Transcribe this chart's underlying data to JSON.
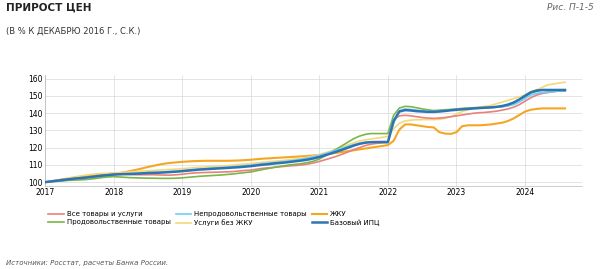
{
  "title": "ПРИРОСТ ЦЕН",
  "subtitle": "(В % К ДЕКАБРЮ 2016 Г., С.К.)",
  "ref": "Рис. П-1-5",
  "source": "Источники: Росстат, расчеты Банка России.",
  "ylim": [
    98,
    162
  ],
  "yticks": [
    100,
    110,
    120,
    130,
    140,
    150,
    160
  ],
  "xlim_start": 2017.0,
  "xlim_end": 2024.83,
  "xtick_labels": [
    "2017",
    "2018",
    "2019",
    "2020",
    "2021",
    "2022",
    "2023",
    "2024"
  ],
  "xtick_positions": [
    2017,
    2018,
    2019,
    2020,
    2021,
    2022,
    2023,
    2024
  ],
  "legend": [
    {
      "label": "Все товары и услуги",
      "color": "#e8827a",
      "lw": 1.2
    },
    {
      "label": "Продовольственные товары",
      "color": "#7ab648",
      "lw": 1.2
    },
    {
      "label": "Непродовольственные товары",
      "color": "#6ecff6",
      "lw": 1.2
    },
    {
      "label": "Услуги без ЖКУ",
      "color": "#f5d87a",
      "lw": 1.2
    },
    {
      "label": "ЖКУ",
      "color": "#f5a623",
      "lw": 1.5
    },
    {
      "label": "Базовый ИПЦ",
      "color": "#2e74b5",
      "lw": 1.8
    }
  ],
  "series": {
    "jku": {
      "color": "#f5a623",
      "lw": 1.5,
      "x": [
        2017.0,
        2017.083,
        2017.167,
        2017.25,
        2017.333,
        2017.417,
        2017.5,
        2017.583,
        2017.667,
        2017.75,
        2017.833,
        2017.917,
        2018.0,
        2018.083,
        2018.167,
        2018.25,
        2018.333,
        2018.417,
        2018.5,
        2018.583,
        2018.667,
        2018.75,
        2018.833,
        2018.917,
        2019.0,
        2019.083,
        2019.167,
        2019.25,
        2019.333,
        2019.417,
        2019.5,
        2019.583,
        2019.667,
        2019.75,
        2019.833,
        2019.917,
        2020.0,
        2020.083,
        2020.167,
        2020.25,
        2020.333,
        2020.417,
        2020.5,
        2020.583,
        2020.667,
        2020.75,
        2020.833,
        2020.917,
        2021.0,
        2021.083,
        2021.167,
        2021.25,
        2021.333,
        2021.417,
        2021.5,
        2021.583,
        2021.667,
        2021.75,
        2021.833,
        2021.917,
        2022.0,
        2022.083,
        2022.167,
        2022.25,
        2022.333,
        2022.417,
        2022.5,
        2022.583,
        2022.667,
        2022.75,
        2022.833,
        2022.917,
        2023.0,
        2023.083,
        2023.167,
        2023.25,
        2023.333,
        2023.417,
        2023.5,
        2023.583,
        2023.667,
        2023.75,
        2023.833,
        2023.917,
        2024.0,
        2024.083,
        2024.167,
        2024.25,
        2024.333,
        2024.417,
        2024.5,
        2024.583
      ],
      "y": [
        100.0,
        100.5,
        101.0,
        101.5,
        102.0,
        102.5,
        103.0,
        103.5,
        104.0,
        104.3,
        104.5,
        104.7,
        104.8,
        105.2,
        105.8,
        106.5,
        107.2,
        108.0,
        108.8,
        109.5,
        110.2,
        110.8,
        111.2,
        111.5,
        111.8,
        112.0,
        112.2,
        112.3,
        112.4,
        112.4,
        112.4,
        112.4,
        112.4,
        112.5,
        112.6,
        112.8,
        113.0,
        113.3,
        113.6,
        113.8,
        114.0,
        114.2,
        114.4,
        114.6,
        114.8,
        115.0,
        115.2,
        115.5,
        115.8,
        116.2,
        116.6,
        117.0,
        117.5,
        118.0,
        118.5,
        119.0,
        119.5,
        120.0,
        120.5,
        121.0,
        121.5,
        124.0,
        130.5,
        133.5,
        133.5,
        133.0,
        132.5,
        132.0,
        131.8,
        129.0,
        128.2,
        128.0,
        129.0,
        132.5,
        133.0,
        133.0,
        133.0,
        133.2,
        133.5,
        134.0,
        134.5,
        135.5,
        137.0,
        139.0,
        141.0,
        142.0,
        142.5,
        142.8,
        142.8,
        142.8,
        142.8,
        142.8
      ]
    },
    "services_no_jku": {
      "color": "#f5d87a",
      "lw": 1.2,
      "x": [
        2017.0,
        2017.083,
        2017.167,
        2017.25,
        2017.333,
        2017.417,
        2017.5,
        2017.583,
        2017.667,
        2017.75,
        2017.833,
        2017.917,
        2018.0,
        2018.083,
        2018.167,
        2018.25,
        2018.333,
        2018.417,
        2018.5,
        2018.583,
        2018.667,
        2018.75,
        2018.833,
        2018.917,
        2019.0,
        2019.083,
        2019.167,
        2019.25,
        2019.333,
        2019.417,
        2019.5,
        2019.583,
        2019.667,
        2019.75,
        2019.833,
        2019.917,
        2020.0,
        2020.083,
        2020.167,
        2020.25,
        2020.333,
        2020.417,
        2020.5,
        2020.583,
        2020.667,
        2020.75,
        2020.833,
        2020.917,
        2021.0,
        2021.083,
        2021.167,
        2021.25,
        2021.333,
        2021.417,
        2021.5,
        2021.583,
        2021.667,
        2021.75,
        2021.833,
        2021.917,
        2022.0,
        2022.083,
        2022.167,
        2022.25,
        2022.333,
        2022.417,
        2022.5,
        2022.583,
        2022.667,
        2022.75,
        2022.833,
        2022.917,
        2023.0,
        2023.083,
        2023.167,
        2023.25,
        2023.333,
        2023.417,
        2023.5,
        2023.583,
        2023.667,
        2023.75,
        2023.833,
        2023.917,
        2024.0,
        2024.083,
        2024.167,
        2024.25,
        2024.333,
        2024.417,
        2024.5,
        2024.583
      ],
      "y": [
        100.0,
        100.6,
        101.2,
        101.8,
        102.4,
        103.0,
        103.5,
        104.0,
        104.4,
        104.8,
        105.0,
        105.2,
        105.4,
        105.6,
        105.8,
        106.0,
        106.2,
        106.4,
        106.6,
        106.8,
        107.0,
        107.2,
        107.4,
        107.6,
        107.8,
        108.1,
        108.4,
        108.6,
        108.8,
        109.0,
        109.2,
        109.4,
        109.6,
        109.9,
        110.2,
        110.5,
        110.8,
        111.2,
        111.5,
        111.8,
        112.1,
        112.4,
        112.7,
        113.1,
        113.5,
        114.0,
        114.5,
        115.2,
        116.0,
        117.0,
        118.0,
        119.2,
        120.4,
        121.6,
        122.8,
        123.8,
        124.5,
        125.0,
        125.5,
        126.0,
        126.5,
        131.0,
        134.2,
        135.5,
        136.0,
        136.2,
        136.3,
        136.3,
        136.3,
        136.5,
        137.0,
        138.0,
        139.5,
        141.0,
        142.0,
        143.0,
        143.5,
        144.0,
        144.5,
        145.5,
        146.5,
        147.5,
        148.5,
        149.5,
        150.5,
        152.0,
        153.5,
        155.0,
        156.5,
        157.0,
        157.5,
        158.0
      ]
    },
    "all_goods": {
      "color": "#e8827a",
      "lw": 1.2,
      "x": [
        2017.0,
        2017.083,
        2017.167,
        2017.25,
        2017.333,
        2017.417,
        2017.5,
        2017.583,
        2017.667,
        2017.75,
        2017.833,
        2017.917,
        2018.0,
        2018.083,
        2018.167,
        2018.25,
        2018.333,
        2018.417,
        2018.5,
        2018.583,
        2018.667,
        2018.75,
        2018.833,
        2018.917,
        2019.0,
        2019.083,
        2019.167,
        2019.25,
        2019.333,
        2019.417,
        2019.5,
        2019.583,
        2019.667,
        2019.75,
        2019.833,
        2019.917,
        2020.0,
        2020.083,
        2020.167,
        2020.25,
        2020.333,
        2020.417,
        2020.5,
        2020.583,
        2020.667,
        2020.75,
        2020.833,
        2020.917,
        2021.0,
        2021.083,
        2021.167,
        2021.25,
        2021.333,
        2021.417,
        2021.5,
        2021.583,
        2021.667,
        2021.75,
        2021.833,
        2021.917,
        2022.0,
        2022.083,
        2022.167,
        2022.25,
        2022.333,
        2022.417,
        2022.5,
        2022.583,
        2022.667,
        2022.75,
        2022.833,
        2022.917,
        2023.0,
        2023.083,
        2023.167,
        2023.25,
        2023.333,
        2023.417,
        2023.5,
        2023.583,
        2023.667,
        2023.75,
        2023.833,
        2023.917,
        2024.0,
        2024.083,
        2024.167,
        2024.25,
        2024.333,
        2024.417,
        2024.5,
        2024.583
      ],
      "y": [
        100.0,
        100.5,
        101.0,
        101.5,
        101.8,
        102.1,
        102.3,
        102.6,
        102.9,
        103.2,
        103.7,
        104.2,
        104.5,
        104.5,
        104.5,
        104.4,
        104.3,
        104.3,
        104.3,
        104.3,
        104.2,
        104.1,
        104.1,
        104.3,
        104.6,
        105.0,
        105.3,
        105.5,
        105.6,
        105.7,
        105.8,
        105.9,
        106.0,
        106.2,
        106.5,
        106.8,
        107.0,
        107.5,
        108.0,
        108.3,
        108.6,
        108.9,
        109.2,
        109.5,
        109.7,
        110.0,
        110.5,
        111.2,
        112.0,
        113.0,
        114.0,
        115.0,
        116.2,
        117.5,
        118.8,
        120.0,
        121.2,
        122.0,
        122.5,
        122.8,
        123.0,
        136.0,
        138.5,
        138.8,
        138.5,
        138.0,
        137.5,
        137.2,
        137.0,
        137.2,
        137.5,
        138.0,
        138.5,
        139.0,
        139.5,
        140.0,
        140.3,
        140.5,
        140.8,
        141.2,
        141.8,
        142.5,
        143.5,
        145.0,
        147.0,
        149.0,
        150.5,
        151.5,
        152.0,
        152.5,
        153.0,
        153.2
      ]
    },
    "food": {
      "color": "#7ab648",
      "lw": 1.2,
      "x": [
        2017.0,
        2017.083,
        2017.167,
        2017.25,
        2017.333,
        2017.417,
        2017.5,
        2017.583,
        2017.667,
        2017.75,
        2017.833,
        2017.917,
        2018.0,
        2018.083,
        2018.167,
        2018.25,
        2018.333,
        2018.417,
        2018.5,
        2018.583,
        2018.667,
        2018.75,
        2018.833,
        2018.917,
        2019.0,
        2019.083,
        2019.167,
        2019.25,
        2019.333,
        2019.417,
        2019.5,
        2019.583,
        2019.667,
        2019.75,
        2019.833,
        2019.917,
        2020.0,
        2020.083,
        2020.167,
        2020.25,
        2020.333,
        2020.417,
        2020.5,
        2020.583,
        2020.667,
        2020.75,
        2020.833,
        2020.917,
        2021.0,
        2021.083,
        2021.167,
        2021.25,
        2021.333,
        2021.417,
        2021.5,
        2021.583,
        2021.667,
        2021.75,
        2021.833,
        2021.917,
        2022.0,
        2022.083,
        2022.167,
        2022.25,
        2022.333,
        2022.417,
        2022.5,
        2022.583,
        2022.667,
        2022.75,
        2022.833,
        2022.917,
        2023.0,
        2023.083,
        2023.167,
        2023.25,
        2023.333,
        2023.417,
        2023.5,
        2023.583,
        2023.667,
        2023.75,
        2023.833,
        2023.917,
        2024.0,
        2024.083,
        2024.167,
        2024.25,
        2024.333,
        2024.417,
        2024.5,
        2024.583
      ],
      "y": [
        100.0,
        100.3,
        100.5,
        100.7,
        101.0,
        101.2,
        101.3,
        101.5,
        101.8,
        102.2,
        102.7,
        103.0,
        103.2,
        103.0,
        102.8,
        102.6,
        102.5,
        102.4,
        102.3,
        102.3,
        102.2,
        102.2,
        102.2,
        102.3,
        102.5,
        102.8,
        103.1,
        103.4,
        103.6,
        103.8,
        104.0,
        104.2,
        104.5,
        104.8,
        105.2,
        105.6,
        105.9,
        106.6,
        107.3,
        107.9,
        108.5,
        109.1,
        109.6,
        110.1,
        110.4,
        110.8,
        111.4,
        112.2,
        113.4,
        115.2,
        117.2,
        119.2,
        121.2,
        123.2,
        125.2,
        126.7,
        127.7,
        128.2,
        128.2,
        128.2,
        128.2,
        138.8,
        143.0,
        144.0,
        143.8,
        143.2,
        142.5,
        142.0,
        141.5,
        141.8,
        142.0,
        142.2,
        142.5,
        142.8,
        143.0,
        143.2,
        143.3,
        143.3,
        143.3,
        143.5,
        143.8,
        144.5,
        146.0,
        148.0,
        150.5,
        152.5,
        153.5,
        153.5,
        153.0,
        153.0,
        153.0,
        153.0
      ]
    },
    "nonfood": {
      "color": "#6ecff6",
      "lw": 1.2,
      "x": [
        2017.0,
        2017.083,
        2017.167,
        2017.25,
        2017.333,
        2017.417,
        2017.5,
        2017.583,
        2017.667,
        2017.75,
        2017.833,
        2017.917,
        2018.0,
        2018.083,
        2018.167,
        2018.25,
        2018.333,
        2018.417,
        2018.5,
        2018.583,
        2018.667,
        2018.75,
        2018.833,
        2018.917,
        2019.0,
        2019.083,
        2019.167,
        2019.25,
        2019.333,
        2019.417,
        2019.5,
        2019.583,
        2019.667,
        2019.75,
        2019.833,
        2019.917,
        2020.0,
        2020.083,
        2020.167,
        2020.25,
        2020.333,
        2020.417,
        2020.5,
        2020.583,
        2020.667,
        2020.75,
        2020.833,
        2020.917,
        2021.0,
        2021.083,
        2021.167,
        2021.25,
        2021.333,
        2021.417,
        2021.5,
        2021.583,
        2021.667,
        2021.75,
        2021.833,
        2021.917,
        2022.0,
        2022.083,
        2022.167,
        2022.25,
        2022.333,
        2022.417,
        2022.5,
        2022.583,
        2022.667,
        2022.75,
        2022.833,
        2022.917,
        2023.0,
        2023.083,
        2023.167,
        2023.25,
        2023.333,
        2023.417,
        2023.5,
        2023.583,
        2023.667,
        2023.75,
        2023.833,
        2023.917,
        2024.0,
        2024.083,
        2024.167,
        2024.25,
        2024.333,
        2024.417,
        2024.5,
        2024.583
      ],
      "y": [
        100.0,
        100.4,
        100.8,
        101.2,
        101.6,
        102.0,
        102.3,
        102.6,
        103.0,
        103.4,
        103.8,
        104.1,
        104.4,
        104.6,
        104.8,
        105.0,
        105.2,
        105.4,
        105.6,
        105.7,
        105.8,
        106.0,
        106.2,
        106.4,
        106.7,
        107.0,
        107.3,
        107.6,
        107.8,
        108.1,
        108.3,
        108.5,
        108.7,
        109.0,
        109.3,
        109.6,
        109.9,
        110.3,
        110.7,
        111.0,
        111.4,
        111.7,
        112.0,
        112.4,
        112.9,
        113.4,
        114.0,
        114.8,
        115.5,
        116.5,
        117.5,
        118.6,
        119.7,
        120.8,
        121.8,
        122.5,
        123.0,
        123.3,
        123.3,
        123.2,
        123.0,
        134.0,
        141.5,
        142.5,
        142.2,
        141.8,
        141.4,
        141.0,
        141.0,
        141.2,
        141.5,
        141.8,
        142.0,
        142.3,
        142.5,
        142.8,
        143.0,
        143.2,
        143.3,
        143.5,
        143.8,
        144.2,
        145.0,
        146.5,
        148.5,
        150.5,
        151.5,
        152.0,
        152.2,
        152.5,
        153.0,
        153.2
      ]
    },
    "core_cpi": {
      "color": "#2e74b5",
      "lw": 1.8,
      "x": [
        2017.0,
        2017.083,
        2017.167,
        2017.25,
        2017.333,
        2017.417,
        2017.5,
        2017.583,
        2017.667,
        2017.75,
        2017.833,
        2017.917,
        2018.0,
        2018.083,
        2018.167,
        2018.25,
        2018.333,
        2018.417,
        2018.5,
        2018.583,
        2018.667,
        2018.75,
        2018.833,
        2018.917,
        2019.0,
        2019.083,
        2019.167,
        2019.25,
        2019.333,
        2019.417,
        2019.5,
        2019.583,
        2019.667,
        2019.75,
        2019.833,
        2019.917,
        2020.0,
        2020.083,
        2020.167,
        2020.25,
        2020.333,
        2020.417,
        2020.5,
        2020.583,
        2020.667,
        2020.75,
        2020.833,
        2020.917,
        2021.0,
        2021.083,
        2021.167,
        2021.25,
        2021.333,
        2021.417,
        2021.5,
        2021.583,
        2021.667,
        2021.75,
        2021.833,
        2021.917,
        2022.0,
        2022.083,
        2022.167,
        2022.25,
        2022.333,
        2022.417,
        2022.5,
        2022.583,
        2022.667,
        2022.75,
        2022.833,
        2022.917,
        2023.0,
        2023.083,
        2023.167,
        2023.25,
        2023.333,
        2023.417,
        2023.5,
        2023.583,
        2023.667,
        2023.75,
        2023.833,
        2023.917,
        2024.0,
        2024.083,
        2024.167,
        2024.25,
        2024.333,
        2024.417,
        2024.5,
        2024.583
      ],
      "y": [
        100.0,
        100.4,
        100.8,
        101.2,
        101.6,
        102.0,
        102.3,
        102.6,
        103.0,
        103.4,
        103.8,
        104.1,
        104.4,
        104.6,
        104.7,
        104.8,
        104.9,
        105.1,
        105.3,
        105.4,
        105.5,
        105.7,
        105.9,
        106.1,
        106.4,
        106.7,
        107.0,
        107.3,
        107.5,
        107.7,
        107.9,
        108.1,
        108.3,
        108.5,
        108.7,
        109.0,
        109.3,
        109.7,
        110.1,
        110.4,
        110.8,
        111.1,
        111.4,
        111.8,
        112.2,
        112.6,
        113.1,
        113.8,
        114.6,
        115.6,
        116.6,
        117.7,
        118.8,
        120.0,
        121.2,
        122.2,
        122.9,
        123.2,
        123.3,
        123.3,
        123.3,
        135.5,
        141.0,
        141.8,
        141.6,
        141.2,
        141.0,
        140.8,
        140.8,
        141.0,
        141.3,
        141.7,
        142.0,
        142.3,
        142.5,
        142.8,
        143.0,
        143.2,
        143.4,
        143.7,
        144.2,
        145.0,
        146.2,
        148.0,
        150.0,
        152.0,
        153.0,
        153.5,
        153.5,
        153.5,
        153.5,
        153.5
      ]
    }
  }
}
